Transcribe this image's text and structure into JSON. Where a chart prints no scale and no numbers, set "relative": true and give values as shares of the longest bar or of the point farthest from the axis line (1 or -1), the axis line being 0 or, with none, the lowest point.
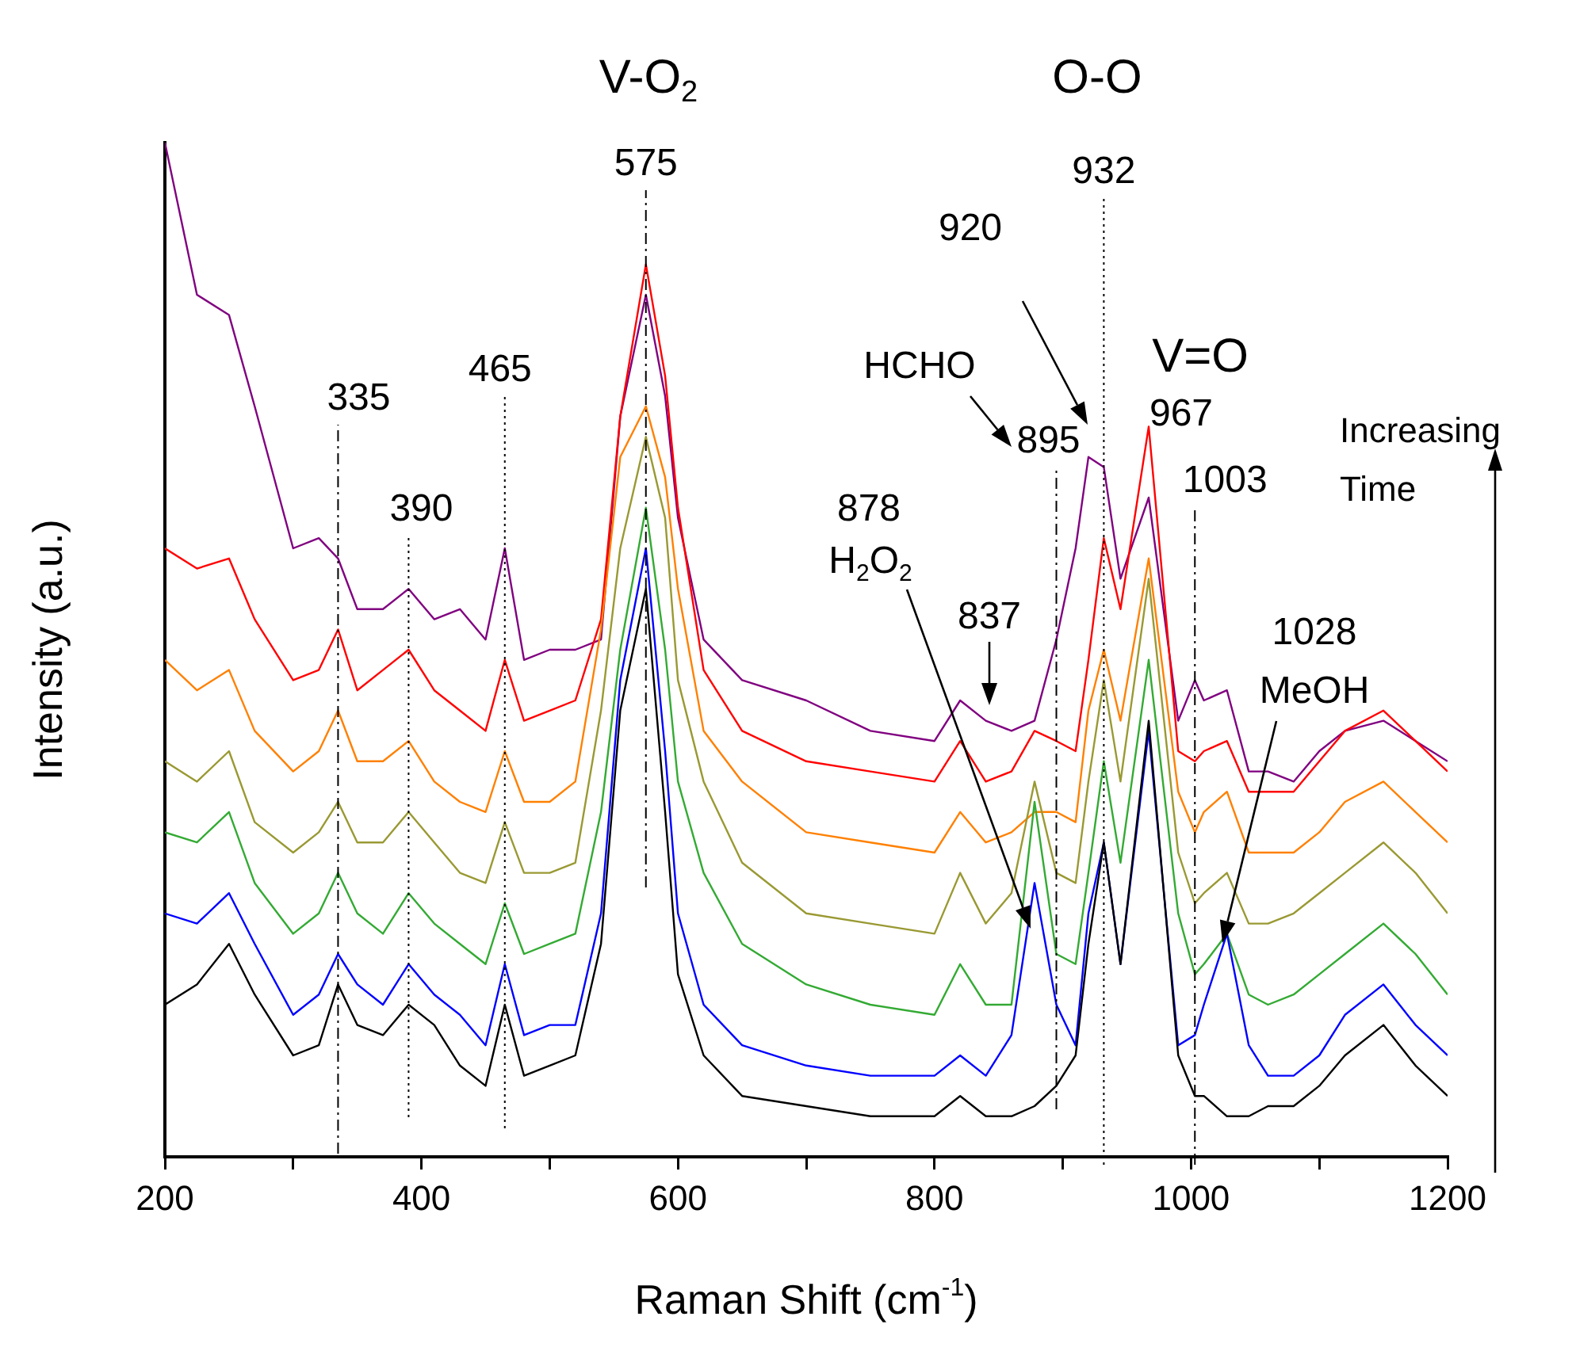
{
  "chart_data": {
    "type": "line",
    "xlabel": "Raman Shift (cm$^{-1}$)",
    "ylabel": "Intensity (a.u.)",
    "relative": true,
    "marker": "none",
    "tick_labels": "x",
    "xlim": [
      200,
      1200
    ],
    "xticks": [
      200,
      {
        "value": 300,
        "label": null
      },
      400,
      {
        "value": 500,
        "label": null
      },
      600,
      {
        "value": 700,
        "label": null
      },
      800,
      {
        "value": 900,
        "label": null
      },
      1000,
      {
        "value": 1100,
        "label": null
      },
      1200
    ],
    "x": [
      200,
      225,
      250,
      270,
      300,
      320,
      335,
      350,
      370,
      390,
      410,
      430,
      450,
      465,
      480,
      500,
      520,
      540,
      555,
      575,
      590,
      600,
      620,
      650,
      700,
      750,
      800,
      820,
      840,
      860,
      878,
      895,
      910,
      920,
      932,
      945,
      967,
      990,
      1003,
      1010,
      1028,
      1045,
      1060,
      1080,
      1100,
      1120,
      1150,
      1175,
      1200
    ],
    "series": [
      {
        "color": "#000000",
        "values": [
          0.15,
          0.17,
          0.21,
          0.16,
          0.1,
          0.11,
          0.17,
          0.13,
          0.12,
          0.15,
          0.13,
          0.09,
          0.07,
          0.15,
          0.08,
          0.09,
          0.1,
          0.21,
          0.44,
          0.56,
          0.34,
          0.18,
          0.1,
          0.06,
          0.05,
          0.04,
          0.04,
          0.06,
          0.04,
          0.04,
          0.05,
          0.07,
          0.1,
          0.21,
          0.31,
          0.19,
          0.43,
          0.1,
          0.06,
          0.06,
          0.04,
          0.04,
          0.05,
          0.05,
          0.07,
          0.1,
          0.13,
          0.09,
          0.06
        ]
      },
      {
        "color": "#0000ff",
        "values": [
          0.24,
          0.23,
          0.26,
          0.21,
          0.14,
          0.16,
          0.2,
          0.17,
          0.15,
          0.19,
          0.16,
          0.14,
          0.11,
          0.19,
          0.12,
          0.13,
          0.13,
          0.24,
          0.47,
          0.6,
          0.4,
          0.24,
          0.15,
          0.11,
          0.09,
          0.08,
          0.08,
          0.1,
          0.08,
          0.12,
          0.27,
          0.15,
          0.11,
          0.24,
          0.31,
          0.19,
          0.42,
          0.11,
          0.12,
          0.15,
          0.22,
          0.11,
          0.08,
          0.08,
          0.1,
          0.14,
          0.17,
          0.13,
          0.1
        ]
      },
      {
        "color": "#33aa33",
        "values": [
          0.32,
          0.31,
          0.34,
          0.27,
          0.22,
          0.24,
          0.28,
          0.24,
          0.22,
          0.26,
          0.23,
          0.21,
          0.19,
          0.25,
          0.2,
          0.21,
          0.22,
          0.34,
          0.5,
          0.64,
          0.5,
          0.37,
          0.28,
          0.21,
          0.17,
          0.15,
          0.14,
          0.19,
          0.15,
          0.15,
          0.35,
          0.2,
          0.19,
          0.28,
          0.39,
          0.29,
          0.49,
          0.24,
          0.18,
          0.19,
          0.22,
          0.16,
          0.15,
          0.16,
          0.18,
          0.2,
          0.23,
          0.2,
          0.16
        ]
      },
      {
        "color": "#999933",
        "values": [
          0.39,
          0.37,
          0.4,
          0.33,
          0.3,
          0.32,
          0.35,
          0.31,
          0.31,
          0.34,
          0.31,
          0.28,
          0.27,
          0.33,
          0.28,
          0.28,
          0.29,
          0.44,
          0.6,
          0.71,
          0.63,
          0.47,
          0.37,
          0.29,
          0.24,
          0.23,
          0.22,
          0.28,
          0.23,
          0.26,
          0.37,
          0.28,
          0.27,
          0.37,
          0.47,
          0.37,
          0.57,
          0.3,
          0.25,
          0.26,
          0.28,
          0.23,
          0.23,
          0.24,
          0.26,
          0.28,
          0.31,
          0.28,
          0.24
        ]
      },
      {
        "color": "#ff8000",
        "values": [
          0.49,
          0.46,
          0.48,
          0.42,
          0.38,
          0.4,
          0.44,
          0.39,
          0.39,
          0.41,
          0.37,
          0.35,
          0.34,
          0.4,
          0.35,
          0.35,
          0.37,
          0.52,
          0.69,
          0.74,
          0.67,
          0.56,
          0.42,
          0.37,
          0.32,
          0.31,
          0.3,
          0.34,
          0.31,
          0.32,
          0.34,
          0.34,
          0.33,
          0.44,
          0.5,
          0.43,
          0.59,
          0.36,
          0.32,
          0.34,
          0.36,
          0.3,
          0.3,
          0.3,
          0.32,
          0.35,
          0.37,
          0.34,
          0.31
        ]
      },
      {
        "color": "#ff0000",
        "values": [
          0.6,
          0.58,
          0.59,
          0.53,
          0.47,
          0.48,
          0.52,
          0.46,
          0.48,
          0.5,
          0.46,
          0.44,
          0.42,
          0.49,
          0.43,
          0.44,
          0.45,
          0.53,
          0.73,
          0.88,
          0.77,
          0.64,
          0.48,
          0.42,
          0.39,
          0.38,
          0.37,
          0.41,
          0.37,
          0.38,
          0.42,
          0.41,
          0.4,
          0.49,
          0.61,
          0.54,
          0.72,
          0.4,
          0.39,
          0.4,
          0.41,
          0.36,
          0.36,
          0.36,
          0.39,
          0.42,
          0.44,
          0.41,
          0.38
        ]
      },
      {
        "color": "#800080",
        "values": [
          1.0,
          0.85,
          0.83,
          0.74,
          0.6,
          0.61,
          0.59,
          0.54,
          0.54,
          0.56,
          0.53,
          0.54,
          0.51,
          0.6,
          0.49,
          0.5,
          0.5,
          0.51,
          0.73,
          0.85,
          0.75,
          0.63,
          0.51,
          0.47,
          0.45,
          0.42,
          0.41,
          0.45,
          0.43,
          0.42,
          0.43,
          0.51,
          0.6,
          0.69,
          0.68,
          0.57,
          0.65,
          0.43,
          0.47,
          0.45,
          0.46,
          0.38,
          0.38,
          0.37,
          0.4,
          0.42,
          0.43,
          0.41,
          0.39
        ]
      }
    ],
    "ref_lines": [
      {
        "axis": "x",
        "value": 335,
        "label": "335",
        "line_style": "dashed"
      },
      {
        "axis": "x",
        "value": 390,
        "label": "390",
        "line_style": "dotted"
      },
      {
        "axis": "x",
        "value": 465,
        "label": "465",
        "line_style": "dotted"
      },
      {
        "axis": "x",
        "value": 575,
        "label": "575",
        "line_style": "dashed"
      },
      {
        "axis": "x",
        "value": 895,
        "label": "895",
        "line_style": "dashed"
      },
      {
        "axis": "x",
        "value": 932,
        "label": "932",
        "line_style": "dotted"
      },
      {
        "axis": "x",
        "value": 1003,
        "label": "1003",
        "line_style": "dashed"
      }
    ],
    "annotations": [
      "V-O$_{2}$",
      "O-O",
      "V=O",
      "967",
      "920",
      "HCHO",
      "837",
      "878",
      "H$_{2}$O$_{2}$",
      "1028",
      "MeOH",
      "Increasing Time"
    ]
  }
}
